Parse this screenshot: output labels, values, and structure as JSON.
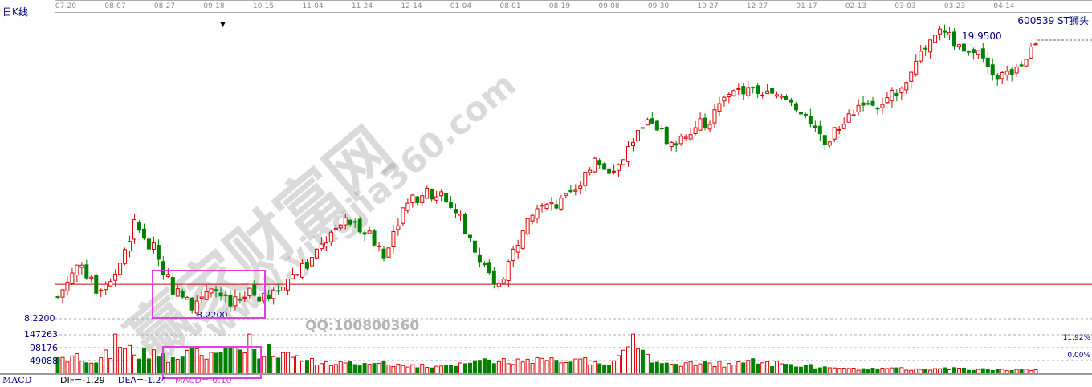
{
  "header": {
    "period_label": "日K线",
    "stock": "600539 ST狮头"
  },
  "x_ticks": [
    "07-20",
    "08-07",
    "08-27",
    "09-18",
    "10-15",
    "11-04",
    "11-24",
    "12-14",
    "01-04",
    "08-01",
    "08-19",
    "09-08",
    "09-30",
    "10-27",
    "12-27",
    "01-17",
    "02-13",
    "03-03",
    "03-23",
    "04-14"
  ],
  "labels": {
    "min_price": "8.2200",
    "max_price": "19.9500",
    "min_axis": "8.2200",
    "vol_ticks": [
      "147263",
      "98176",
      "49088"
    ],
    "right_pct": [
      "11.92%",
      "0.00%"
    ]
  },
  "footer": {
    "indicator": "MACD",
    "dif": "DIF=-1.29",
    "dea": "DEA=-1.24",
    "macd": "MACD=-0.10"
  },
  "watermark": {
    "name": "赢家财富网",
    "url": "www.yingjia360.com",
    "qq": "QQ:100800360"
  },
  "colors": {
    "up": "#e00000",
    "down": "#008000",
    "highlight": "#e040e0",
    "ref_line": "#d00000"
  },
  "chart_data": {
    "type": "candlestick",
    "price_range": [
      8.22,
      19.95
    ],
    "reference_price": 9.62,
    "key_closes": [
      9.1,
      10.41,
      9.43,
      10.08,
      12.04,
      11.06,
      9.43,
      8.78,
      9.59,
      8.78,
      9.27,
      8.94,
      9.92,
      10.41,
      11.39,
      12.21,
      11.88,
      10.9,
      12.7,
      13.35,
      13.19,
      12.37,
      10.41,
      9.59,
      11.39,
      12.7,
      12.86,
      13.35,
      14.82,
      14.17,
      15.47,
      16.29,
      15.31,
      15.96,
      16.29,
      17.43,
      17.6,
      17.27,
      17.11,
      16.29,
      15.31,
      16.29,
      17.11,
      16.78,
      17.76,
      18.9,
      19.88,
      19.39,
      19.23,
      18.09,
      18.25,
      19.56
    ],
    "key_volumes": [
      60000,
      75000,
      40000,
      150000,
      70000,
      90000,
      60000,
      100000,
      80000,
      95000,
      150000,
      110000,
      80000,
      50000,
      45000,
      40000,
      38000,
      45000,
      30000,
      35000,
      28000,
      40000,
      50000,
      45000,
      55000,
      60000,
      50000,
      55000,
      45000,
      48000,
      150000,
      40000,
      35000,
      45000,
      40000,
      38000,
      50000,
      45000,
      35000,
      30000,
      25000,
      20000,
      18000,
      20000,
      22000,
      15000,
      18000,
      20000,
      15000,
      16000,
      15000,
      14000
    ]
  }
}
